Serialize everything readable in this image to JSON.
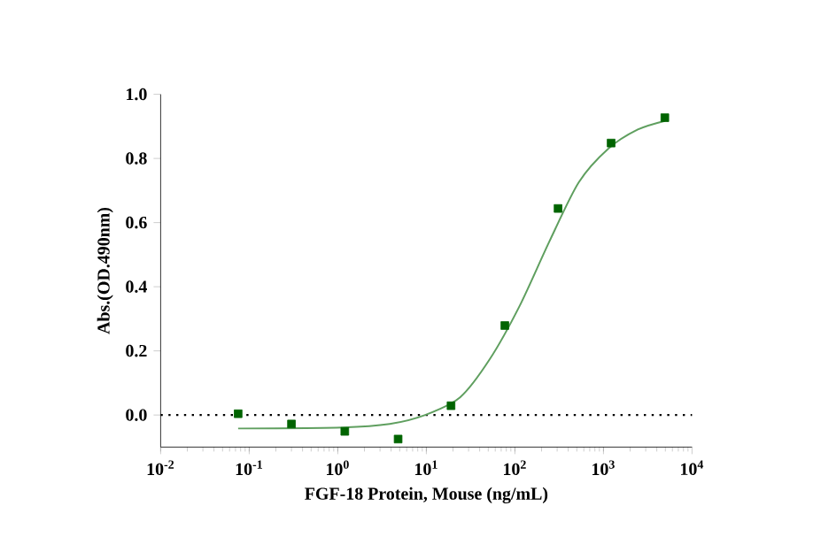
{
  "chart_data": {
    "type": "scatter",
    "xlabel": "FGF-18 Protein, Mouse (ng/mL)",
    "ylabel": "Abs.(OD.490nm)",
    "log": "x",
    "xlim": [
      0.01,
      10000
    ],
    "ylim": [
      -0.1,
      1.0
    ],
    "xticks": [
      {
        "value": 0.01,
        "label": "10$^{-2}$"
      },
      {
        "value": 0.1,
        "label": "10$^{-1}$"
      },
      {
        "value": 1,
        "label": "10$^{0}$"
      },
      {
        "value": 10,
        "label": "10$^{1}$"
      },
      {
        "value": 100,
        "label": "10$^{2}$"
      },
      {
        "value": 1000,
        "label": "10$^{3}$"
      },
      {
        "value": 10000,
        "label": "10$^{4}$"
      }
    ],
    "yticks": [
      {
        "value": 0,
        "label": "0.0"
      },
      {
        "value": 0.2,
        "label": "0.2"
      },
      {
        "value": 0.4,
        "label": "0.4"
      },
      {
        "value": 0.6,
        "label": "0.6"
      },
      {
        "value": 0.8,
        "label": "0.8"
      },
      {
        "value": 1.0,
        "label": "1.0"
      }
    ],
    "ref_lines": [
      {
        "axis": "y",
        "value": 0,
        "color": "#000000",
        "line_style": "dotted"
      }
    ],
    "series": [
      {
        "marker": "square",
        "color": "#006400",
        "x": [
          0.075,
          0.3,
          1.2,
          4.8,
          19,
          77,
          307,
          1220,
          4930
        ],
        "values": [
          0.004,
          -0.028,
          -0.051,
          -0.075,
          0.029,
          0.279,
          0.644,
          0.848,
          0.927
        ]
      },
      {
        "type": "line",
        "marker": "none",
        "color": "#5f9f5f",
        "x": [
          0.075,
          1.13,
          3.86,
          9.7,
          24,
          52,
          113,
          244,
          525,
          1130,
          2440,
          4930
        ],
        "values": [
          -0.042,
          -0.039,
          -0.028,
          0.0,
          0.055,
          0.174,
          0.34,
          0.54,
          0.725,
          0.83,
          0.89,
          0.917
        ]
      }
    ]
  }
}
